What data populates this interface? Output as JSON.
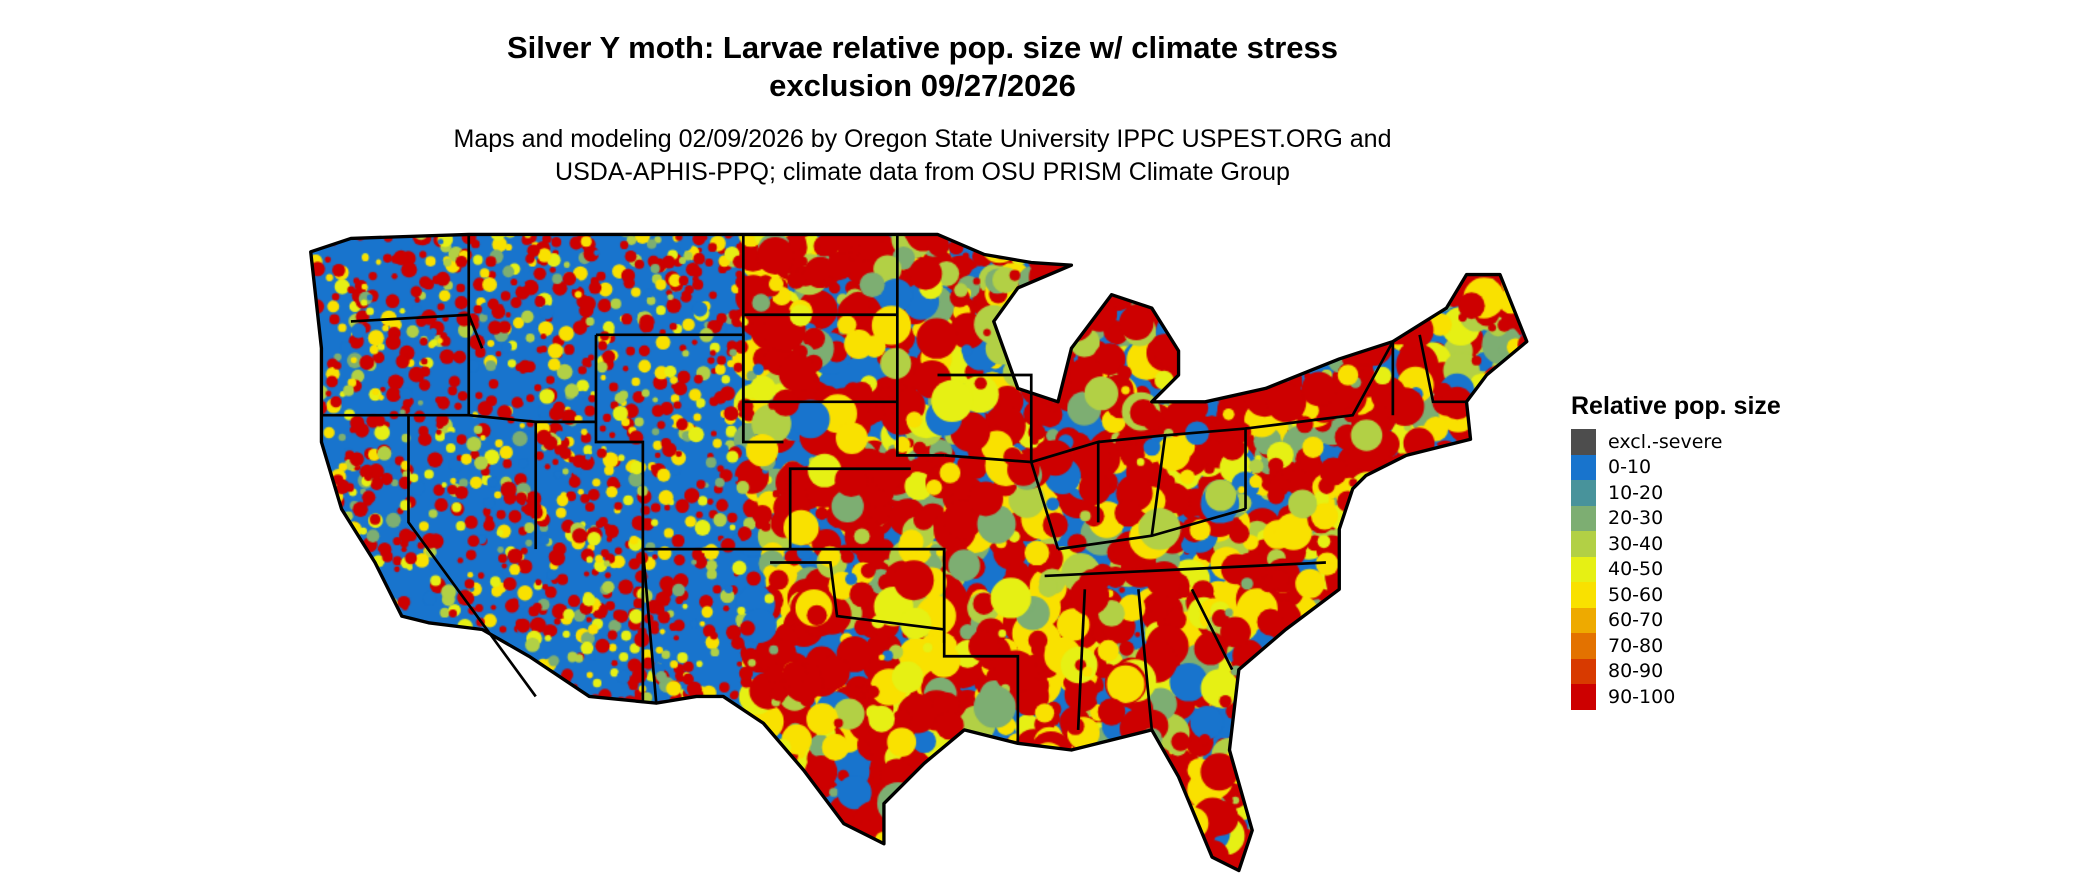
{
  "title": {
    "line1": "Silver Y moth: Larvae relative pop. size w/ climate stress",
    "line2": "exclusion 09/27/2026"
  },
  "subtitle": {
    "line1": "Maps and modeling 02/09/2026 by Oregon State University IPPC USPEST.ORG and",
    "line2": "USDA-APHIS-PPQ; climate data from OSU PRISM Climate Group"
  },
  "map": {
    "region": "Contiguous United States",
    "state_border_color": "#000000"
  },
  "legend": {
    "title": "Relative pop. size",
    "items": [
      {
        "label": "excl.-severe",
        "color": "#4d4d4d"
      },
      {
        "label": "0-10",
        "color": "#1874cd"
      },
      {
        "label": "10-20",
        "color": "#48939b"
      },
      {
        "label": "20-30",
        "color": "#7dae72"
      },
      {
        "label": "30-40",
        "color": "#b2d045"
      },
      {
        "label": "40-50",
        "color": "#e6f014"
      },
      {
        "label": "50-60",
        "color": "#f9e100"
      },
      {
        "label": "60-70",
        "color": "#eeaa00"
      },
      {
        "label": "70-80",
        "color": "#e37200"
      },
      {
        "label": "80-90",
        "color": "#d83a00"
      },
      {
        "label": "90-100",
        "color": "#cd0000"
      }
    ]
  }
}
